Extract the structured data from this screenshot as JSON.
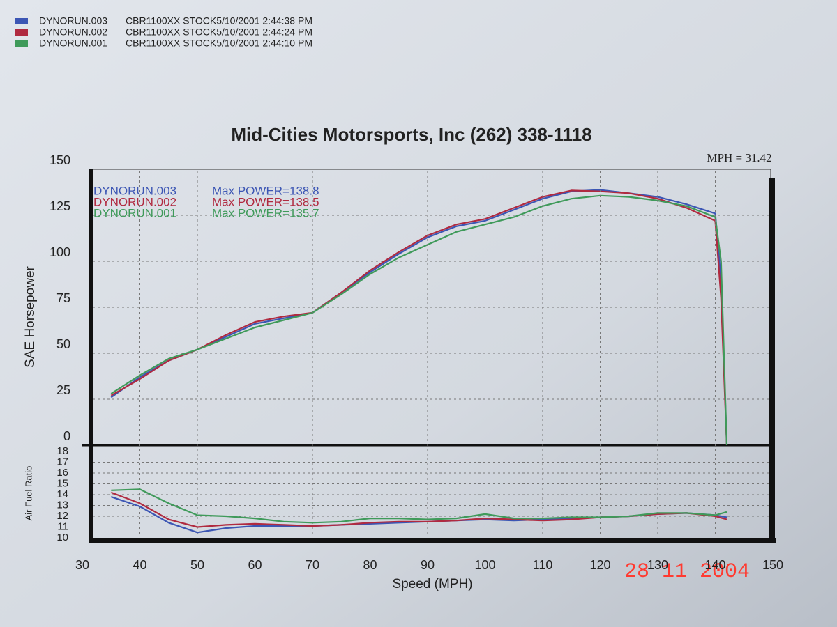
{
  "header": {
    "runs": [
      {
        "name": "DYNORUN.003",
        "info": "CBR1100XX STOCK5/10/2001 2:44:38 PM",
        "color": "#3c56b4"
      },
      {
        "name": "DYNORUN.002",
        "info": "CBR1100XX STOCK5/10/2001 2:44:24 PM",
        "color": "#b02a40"
      },
      {
        "name": "DYNORUN.001",
        "info": "CBR1100XX STOCK5/10/2001 2:44:10 PM",
        "color": "#3f9a5a"
      }
    ]
  },
  "photo_stamp": "28 11 2004",
  "chart_data": [
    {
      "type": "line",
      "title": "Mid-Cities Motorsports, Inc  (262) 338-1118",
      "annotation": "MPH = 31.42",
      "ylabel": "SAE Horsepower",
      "xlim": [
        30,
        150
      ],
      "ylim": [
        0,
        150
      ],
      "yticks": [
        0,
        25,
        50,
        75,
        100,
        125,
        150
      ],
      "grid": true,
      "x": [
        35,
        40,
        45,
        50,
        55,
        60,
        65,
        70,
        75,
        80,
        85,
        90,
        95,
        100,
        105,
        110,
        115,
        120,
        125,
        130,
        135,
        140,
        141,
        142
      ],
      "series": [
        {
          "name": "DYNORUN.003",
          "note": "Max POWER=138.8",
          "color": "#3c56b4",
          "values": [
            26,
            37,
            46,
            52,
            59,
            66,
            69,
            72,
            83,
            94,
            104,
            113,
            119,
            122,
            128,
            134,
            138,
            138.8,
            137,
            135,
            131,
            126,
            90,
            0
          ]
        },
        {
          "name": "DYNORUN.002",
          "note": "Max POWER=138.5",
          "color": "#b02a40",
          "values": [
            27,
            36,
            46,
            52,
            60,
            67,
            70,
            72,
            83,
            95,
            105,
            114,
            120,
            123,
            129,
            135,
            138.5,
            138,
            137,
            134,
            129,
            122,
            80,
            0
          ]
        },
        {
          "name": "DYNORUN.001",
          "note": "Max POWER=135.7",
          "color": "#3f9a5a",
          "values": [
            28,
            38,
            47,
            52,
            58,
            64,
            68,
            72,
            82,
            93,
            102,
            109,
            116,
            120,
            124,
            130,
            134,
            135.7,
            135,
            133,
            130,
            124,
            100,
            0
          ]
        }
      ]
    },
    {
      "type": "line",
      "ylabel": "Air Fuel Ratio",
      "xlabel": "Speed (MPH)",
      "xlim": [
        30,
        150
      ],
      "xticks": [
        30,
        40,
        50,
        60,
        70,
        80,
        90,
        100,
        110,
        120,
        130,
        140,
        150
      ],
      "ylim": [
        10,
        18
      ],
      "yticks": [
        10,
        11,
        12,
        13,
        14,
        15,
        16,
        17,
        18
      ],
      "grid": true,
      "x": [
        35,
        40,
        45,
        50,
        55,
        60,
        65,
        70,
        75,
        80,
        85,
        90,
        95,
        100,
        105,
        110,
        115,
        120,
        125,
        130,
        135,
        140,
        142
      ],
      "series": [
        {
          "color": "#3c56b4",
          "values": [
            13.8,
            12.9,
            11.4,
            10.5,
            10.9,
            11.1,
            11.1,
            11.1,
            11.2,
            11.3,
            11.4,
            11.5,
            11.6,
            11.7,
            11.6,
            11.7,
            11.8,
            11.9,
            12.0,
            12.2,
            12.3,
            12.1,
            11.9
          ]
        },
        {
          "color": "#b02a40",
          "values": [
            14.2,
            13.2,
            11.7,
            11.0,
            11.2,
            11.3,
            11.2,
            11.1,
            11.2,
            11.4,
            11.5,
            11.5,
            11.6,
            11.8,
            11.7,
            11.6,
            11.7,
            11.9,
            12.0,
            12.2,
            12.3,
            12.0,
            11.7
          ]
        },
        {
          "color": "#3f9a5a",
          "values": [
            14.4,
            14.5,
            13.2,
            12.1,
            12.0,
            11.8,
            11.5,
            11.4,
            11.5,
            11.8,
            11.8,
            11.7,
            11.8,
            12.2,
            11.8,
            11.8,
            11.9,
            11.9,
            12.0,
            12.3,
            12.3,
            12.1,
            12.4
          ]
        }
      ]
    }
  ]
}
